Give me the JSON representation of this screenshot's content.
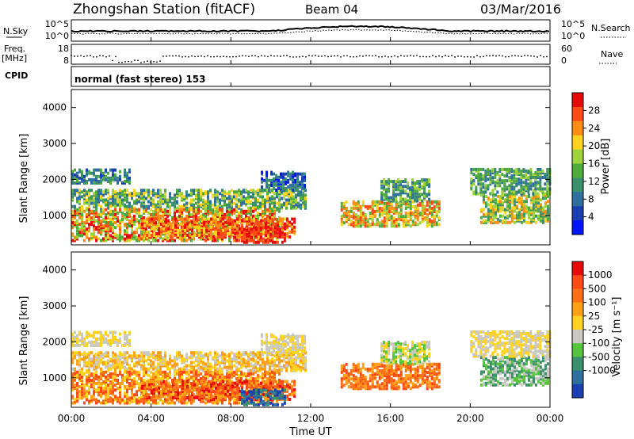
{
  "header": {
    "station": "Zhongshan Station (fitACF)",
    "beam": "Beam 04",
    "date": "03/Mar/2016"
  },
  "panels": {
    "nsky_label": "N.Sky",
    "nsky_ticks": [
      "10^5",
      "10^0"
    ],
    "nsearch_label": "N.Search",
    "nsearch_ticks": [
      "10^5",
      "10^0"
    ],
    "freq_label_1": "Freq.",
    "freq_label_2": "[MHz]",
    "freq_ticks": [
      "18",
      "8"
    ],
    "nave_label": "Nave",
    "nave_ticks": [
      "60",
      "0"
    ],
    "cpid_label": "CPID",
    "cpid_text": "normal (fast stereo) 153"
  },
  "chart_data": [
    {
      "type": "heatmap",
      "title": "",
      "ylabel": "Slant Range [km]",
      "xlabel": "",
      "ylim": [
        180,
        4500
      ],
      "yticks": [
        "1000",
        "2000",
        "3000",
        "4000"
      ],
      "xlim": [
        "00:00",
        "24:00"
      ],
      "colorbar": {
        "label": "Power [dB]",
        "ticks": [
          "4",
          "8",
          "12",
          "16",
          "20",
          "24",
          "28"
        ],
        "colors": [
          "#0014ff",
          "#1a3fb0",
          "#2f6fa0",
          "#3a8f6c",
          "#4faa3c",
          "#9ed23c",
          "#ffd21e",
          "#ff8c14",
          "#ff4a14",
          "#e60a0a"
        ]
      }
    },
    {
      "type": "heatmap",
      "title": "",
      "ylabel": "Slant Range [km]",
      "xlabel": "Time UT",
      "ylim": [
        180,
        4500
      ],
      "yticks": [
        "1000",
        "2000",
        "3000",
        "4000"
      ],
      "xticks": [
        "00:00",
        "04:00",
        "08:00",
        "12:00",
        "16:00",
        "20:00",
        "00:00"
      ],
      "colorbar": {
        "label": "Velocity [m s⁻¹]",
        "ticks": [
          "1000",
          "500",
          "100",
          "25",
          "-25",
          "-100",
          "-500",
          "-1000"
        ],
        "colors": [
          "#1a3fb0",
          "#2f6fa0",
          "#3a8f6c",
          "#55c43c",
          "#c8c8c0",
          "#ffd21e",
          "#ffa014",
          "#ff6e14",
          "#ff4a14",
          "#e60a0a"
        ]
      }
    }
  ]
}
